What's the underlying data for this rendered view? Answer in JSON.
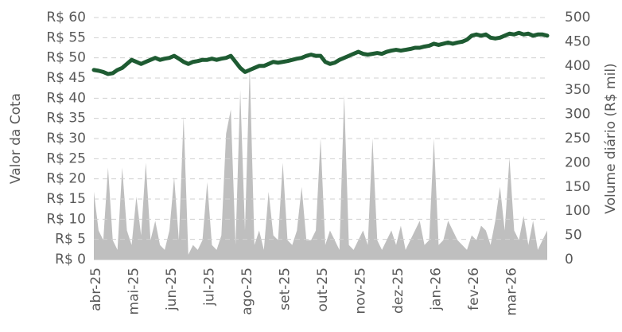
{
  "chart_data": {
    "type": "line-area",
    "y_label": "Valor da Cota",
    "y2_label": "Volume diário (R$ mil)",
    "categories": [
      "abr-25",
      null,
      null,
      null,
      null,
      null,
      null,
      null,
      "mai-25",
      null,
      null,
      null,
      null,
      null,
      null,
      null,
      "jun-25",
      null,
      null,
      null,
      null,
      null,
      null,
      null,
      "jul-25",
      null,
      null,
      null,
      null,
      null,
      null,
      null,
      "ago-25",
      null,
      null,
      null,
      null,
      null,
      null,
      null,
      "set-25",
      null,
      null,
      null,
      null,
      null,
      null,
      null,
      "out-25",
      null,
      null,
      null,
      null,
      null,
      null,
      null,
      "nov-25",
      null,
      null,
      null,
      null,
      null,
      null,
      null,
      "dez-25",
      null,
      null,
      null,
      null,
      null,
      null,
      null,
      "jan-26",
      null,
      null,
      null,
      null,
      null,
      null,
      null,
      "fev-26",
      null,
      null,
      null,
      null,
      null,
      null,
      null,
      "mar-26",
      null,
      null,
      null,
      null,
      null,
      null,
      null,
      null
    ],
    "series": [
      {
        "name": "Valor da Cota",
        "color": "#1e5b32",
        "values": [
          47,
          46.8,
          46.5,
          46,
          46.2,
          47,
          47.5,
          48.5,
          49.5,
          49,
          48.5,
          49,
          49.5,
          50,
          49.5,
          49.8,
          50,
          50.5,
          49.8,
          49,
          48.5,
          49,
          49.2,
          49.5,
          49.5,
          49.8,
          49.5,
          49.8,
          50,
          50.5,
          49,
          47.5,
          46.5,
          47,
          47.5,
          48,
          48,
          48.5,
          49,
          48.8,
          49,
          49.2,
          49.5,
          49.8,
          50,
          50.5,
          50.8,
          50.5,
          50.5,
          49,
          48.5,
          48.8,
          49.5,
          50,
          50.5,
          51,
          51.5,
          51,
          50.8,
          51,
          51.2,
          51,
          51.5,
          51.8,
          52,
          51.8,
          52,
          52.2,
          52.5,
          52.5,
          52.8,
          53,
          53.5,
          53.2,
          53.5,
          53.8,
          53.5,
          53.8,
          54,
          54.5,
          55.5,
          55.8,
          55.5,
          55.8,
          55,
          54.8,
          55,
          55.5,
          56,
          55.8,
          56.2,
          55.8,
          56,
          55.5,
          55.8,
          55.8,
          55.5
        ]
      },
      {
        "name": "Volume diário (R$ mil)",
        "color": "#bfbfbf",
        "axis": "y2",
        "values": [
          140,
          60,
          40,
          190,
          40,
          20,
          190,
          60,
          30,
          130,
          50,
          200,
          40,
          80,
          30,
          20,
          60,
          170,
          40,
          295,
          10,
          30,
          20,
          40,
          160,
          30,
          20,
          50,
          260,
          310,
          30,
          350,
          60,
          400,
          30,
          60,
          20,
          140,
          50,
          40,
          200,
          40,
          30,
          60,
          150,
          40,
          40,
          60,
          250,
          30,
          60,
          40,
          20,
          340,
          30,
          20,
          40,
          60,
          30,
          250,
          40,
          20,
          40,
          60,
          30,
          70,
          20,
          40,
          60,
          80,
          30,
          40,
          250,
          30,
          40,
          80,
          60,
          40,
          30,
          20,
          50,
          40,
          70,
          60,
          30,
          80,
          150,
          60,
          210,
          60,
          40,
          90,
          30,
          80,
          20,
          40,
          60
        ]
      }
    ],
    "ylim": [
      0,
      60
    ],
    "yticks": [
      {
        "value": 0,
        "label": "R$ 0"
      },
      {
        "value": 5,
        "label": "R$ 5"
      },
      {
        "value": 10,
        "label": "R$ 10"
      },
      {
        "value": 15,
        "label": "R$ 15"
      },
      {
        "value": 20,
        "label": "R$ 20"
      },
      {
        "value": 25,
        "label": "R$ 25"
      },
      {
        "value": 30,
        "label": "R$ 30"
      },
      {
        "value": 35,
        "label": "R$ 35"
      },
      {
        "value": 40,
        "label": "R$ 40"
      },
      {
        "value": 45,
        "label": "R$ 45"
      },
      {
        "value": 50,
        "label": "R$ 50"
      },
      {
        "value": 55,
        "label": "R$ 55"
      },
      {
        "value": 60,
        "label": "R$ 60"
      }
    ],
    "y2lim": [
      0,
      500
    ],
    "y2ticks": [
      0,
      50,
      100,
      150,
      200,
      250,
      300,
      350,
      400,
      450,
      500
    ],
    "grid": true
  }
}
